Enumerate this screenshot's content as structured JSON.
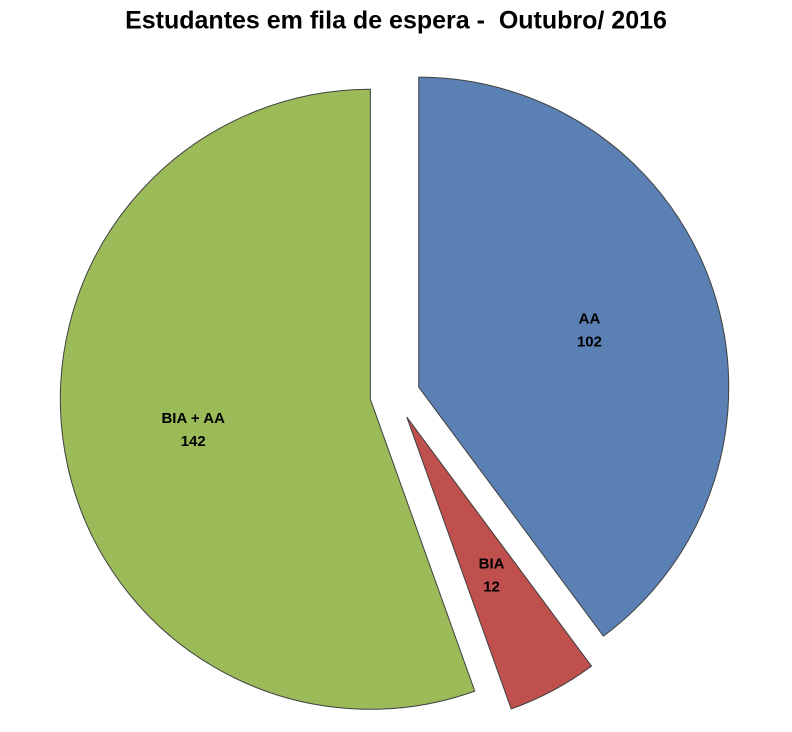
{
  "chart_data": {
    "type": "pie",
    "title": "Estudantes em fila de espera -  Outubro/ 2016",
    "categories": [
      "AA",
      "BIA",
      "BIA + AA"
    ],
    "values": [
      102,
      12,
      142
    ],
    "colors": [
      "#5b80b4",
      "#c0504d",
      "#9bbb59"
    ]
  }
}
